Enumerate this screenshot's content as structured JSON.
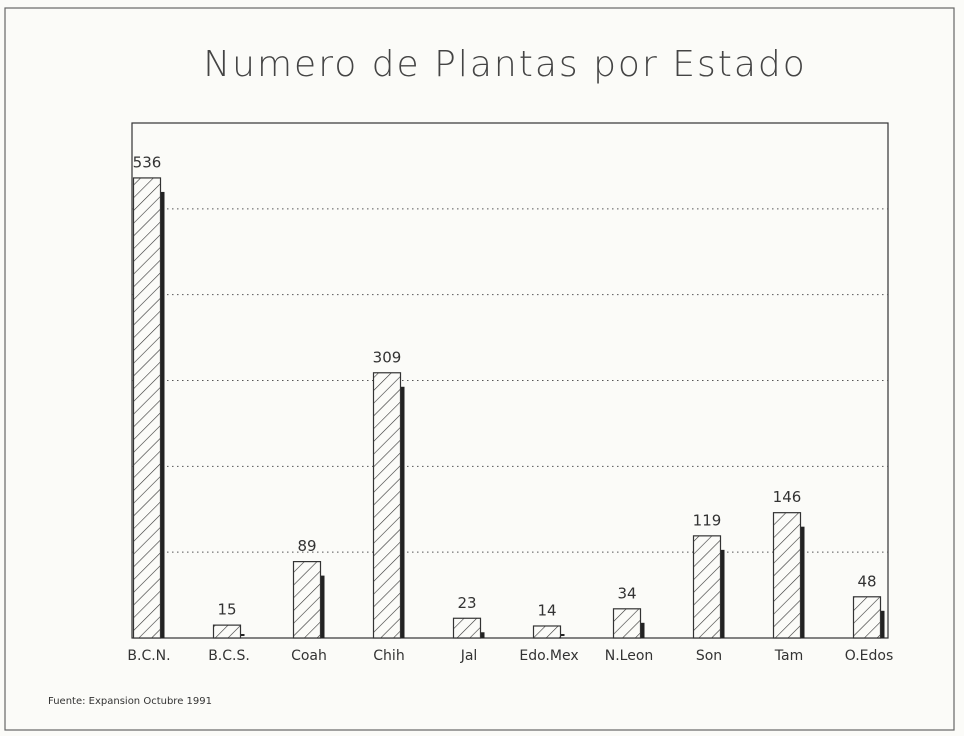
{
  "chart_data": {
    "type": "bar",
    "title": "Numero de Plantas por Estado",
    "categories": [
      "B.C.N.",
      "B.C.S.",
      "Coah",
      "Chih",
      "Jal",
      "Edo.Mex",
      "N.Leon",
      "Son",
      "Tam",
      "O.Edos"
    ],
    "values": [
      536,
      15,
      89,
      309,
      23,
      14,
      34,
      119,
      146,
      48
    ],
    "color": "#222222",
    "ylim": [
      0,
      600
    ],
    "yticks": [
      100,
      200,
      300,
      400,
      500
    ],
    "grid": true,
    "source": "Fuente: Expansion Octubre 1991"
  }
}
